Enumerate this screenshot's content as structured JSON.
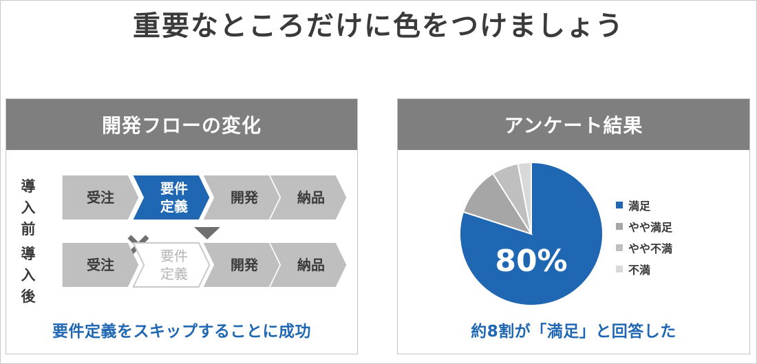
{
  "title": "重要なところだけに色をつけましょう",
  "left_panel": {
    "header": "開発フローの変化",
    "rows": [
      {
        "label": "導入\n前",
        "steps": [
          {
            "label": "受注",
            "state": "normal"
          },
          {
            "label": "要件\n定義",
            "state": "active"
          },
          {
            "label": "開発",
            "state": "normal"
          },
          {
            "label": "納品",
            "state": "normal"
          }
        ]
      },
      {
        "label": "導入\n後",
        "steps": [
          {
            "label": "受注",
            "state": "normal"
          },
          {
            "label": "要件\n定義",
            "state": "skipped"
          },
          {
            "label": "開発",
            "state": "normal"
          },
          {
            "label": "納品",
            "state": "normal"
          }
        ]
      }
    ],
    "caption": "要件定義をスキップすることに成功"
  },
  "right_panel": {
    "header": "アンケート結果",
    "center_value": "80%",
    "caption": "約8割が「満足」と回答した"
  },
  "colors": {
    "accent": "#1f67b3",
    "header_bg": "#7f7f7f",
    "step_bg": "#bfbfbf",
    "text": "#3a3a3a"
  },
  "chart_data": {
    "type": "pie",
    "title": "",
    "series": [
      {
        "name": "満足",
        "value": 80,
        "color": "#1f67b3"
      },
      {
        "name": "やや満足",
        "value": 11,
        "color": "#a6a6a6"
      },
      {
        "name": "やや不満",
        "value": 6,
        "color": "#bfbfbf"
      },
      {
        "name": "不満",
        "value": 3,
        "color": "#d9d9d9"
      }
    ],
    "legend_position": "right"
  }
}
